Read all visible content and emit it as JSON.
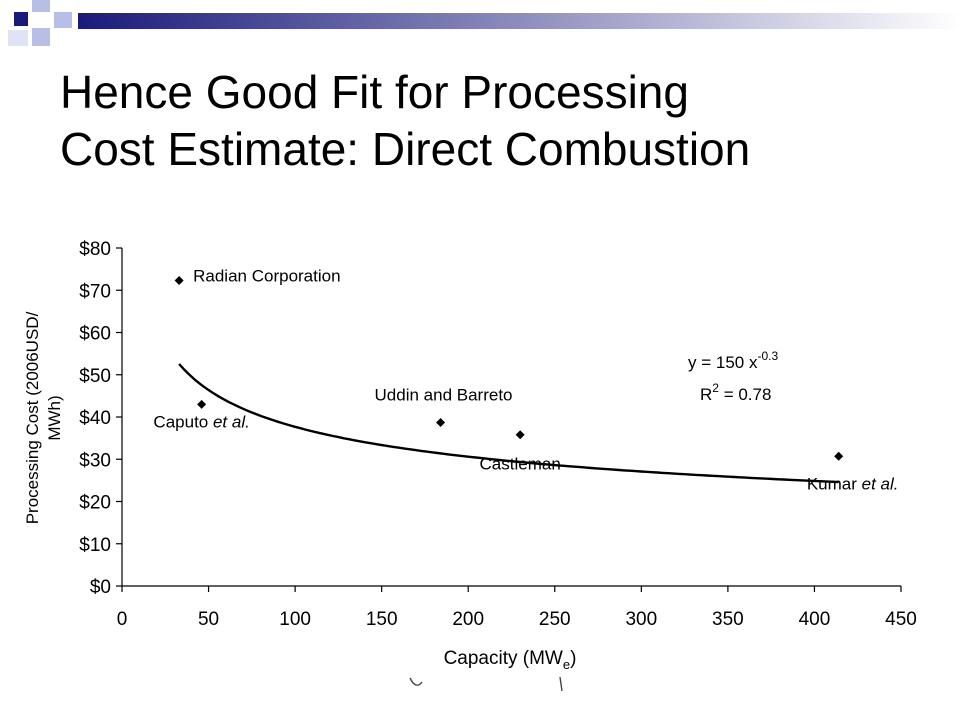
{
  "slide": {
    "title_lines": [
      "Hence Good Fit for Processing",
      "Cost Estimate: Direct Combustion"
    ],
    "accent_colors": {
      "navy": "#1a1a7a",
      "light_blue": "#b8bfe6",
      "gradient_light": "#ffffff"
    }
  },
  "chart_data": {
    "type": "scatter",
    "xlabel": "Capacity (MWe)",
    "ylabel": "Processing Cost (2006USD/MWh)",
    "ylabel_lines": [
      "Processing Cost (2006USD/",
      "MWh)"
    ],
    "xlabel_parts": {
      "main": "Capacity (MW",
      "sub": "e",
      "close": ")"
    },
    "xlim": [
      0,
      450
    ],
    "ylim": [
      0,
      80
    ],
    "x_ticks": [
      0,
      50,
      100,
      150,
      200,
      250,
      300,
      350,
      400,
      450
    ],
    "y_ticks": [
      0,
      10,
      20,
      30,
      40,
      50,
      60,
      70,
      80
    ],
    "y_tick_labels": [
      "$0",
      "$10",
      "$20",
      "$30",
      "$40",
      "$50",
      "$60",
      "$70",
      "$80"
    ],
    "grid": false,
    "points": [
      {
        "name": "Radian Corporation",
        "x": 33,
        "y": 72.3
      },
      {
        "name": "Caputo et al.",
        "x": 46,
        "y": 43.0
      },
      {
        "name": "Uddin and Barreto",
        "x": 184,
        "y": 38.7
      },
      {
        "name": "Castleman",
        "x": 230,
        "y": 35.8
      },
      {
        "name": "Kumar et al.",
        "x": 414,
        "y": 30.7
      }
    ],
    "point_labels": [
      {
        "main": "Radian Corporation",
        "italic": ""
      },
      {
        "main": "Caputo ",
        "italic": "et al."
      },
      {
        "main": "Uddin and Barreto",
        "italic": ""
      },
      {
        "main": "Castleman",
        "italic": ""
      },
      {
        "main": "Kumar ",
        "italic": "et al."
      }
    ],
    "trendline": {
      "a": 150,
      "b": -0.3,
      "x_from": 33,
      "x_to": 414
    },
    "equation": {
      "prefix": "y = 150 x",
      "exponent": "-0.3"
    },
    "r_squared": {
      "prefix": "R",
      "exponent": "2",
      "suffix": " = 0.78"
    }
  }
}
